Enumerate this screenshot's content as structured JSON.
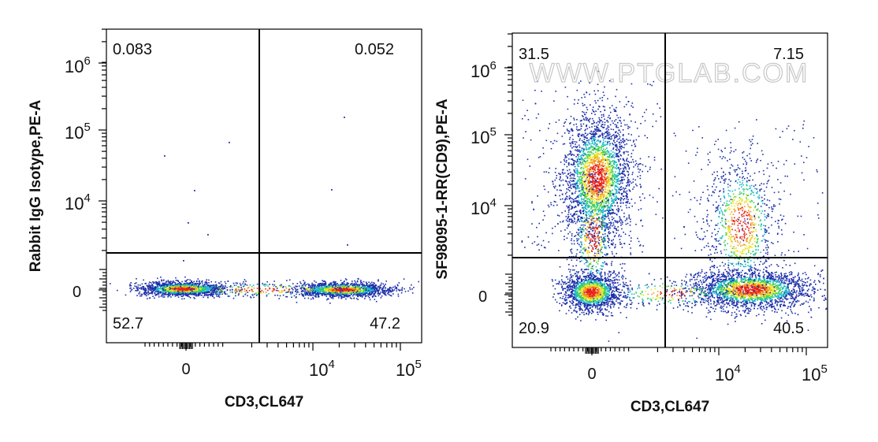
{
  "chart_data": [
    {
      "type": "scatter",
      "plot_kind": "flow cytometry density dot plot",
      "xlabel": "CD3,CL647",
      "ylabel": "Rabbit IgG Isotype,PE-A",
      "x_scale": "biexponential",
      "y_scale": "biexponential",
      "x_tick_labels": [
        "0",
        "10^4",
        "10^5"
      ],
      "y_tick_labels": [
        "0",
        "10^4",
        "10^5",
        "10^6"
      ],
      "quadrant_percentages": {
        "upper_left": "0.083",
        "upper_right": "0.052",
        "lower_left": "52.7",
        "lower_right": "47.2"
      },
      "populations": [
        {
          "name": "CD3- CD9-",
          "x_center": 0,
          "y_center": 0
        },
        {
          "name": "CD3+ CD9-",
          "x_center": 20000,
          "y_center": 0
        }
      ],
      "grid": false,
      "legend": "none"
    },
    {
      "type": "scatter",
      "plot_kind": "flow cytometry density dot plot",
      "xlabel": "CD3,CL647",
      "ylabel": "SF98095-1-RR(CD9),PE-A",
      "watermark": "WWW.PTGLAB.COM",
      "x_scale": "biexponential",
      "y_scale": "biexponential",
      "x_tick_labels": [
        "0",
        "10^4",
        "10^5"
      ],
      "y_tick_labels": [
        "0",
        "10^4",
        "10^5",
        "10^6"
      ],
      "quadrant_percentages": {
        "upper_left": "31.5",
        "upper_right": "7.15",
        "lower_left": "20.9",
        "lower_right": "40.5"
      },
      "populations": [
        {
          "name": "CD3- CD9+",
          "x_center": 0,
          "y_center": 30000
        },
        {
          "name": "CD3- CD9-",
          "x_center": 0,
          "y_center": 0
        },
        {
          "name": "CD3+ CD9-",
          "x_center": 20000,
          "y_center": 0
        },
        {
          "name": "CD3+ CD9+",
          "x_center": 20000,
          "y_center": 20000
        }
      ],
      "grid": false,
      "legend": "none"
    }
  ]
}
